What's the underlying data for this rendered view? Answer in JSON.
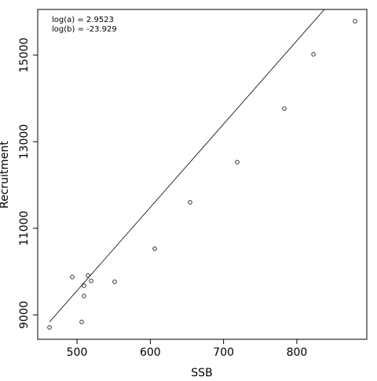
{
  "chart_data": {
    "type": "scatter",
    "xlabel": "SSB",
    "ylabel": "Recruitment",
    "annotations": [
      "log(a) = 2.9523",
      "log(b) = -23.929"
    ],
    "series": [
      {
        "type": "scatter",
        "color": "#000000",
        "x": [
          462.5,
          493.6,
          506.4,
          509.6,
          509.6,
          515,
          519.3,
          551.4,
          606.1,
          654.3,
          718.6,
          782.9,
          822.6,
          879.4
        ],
        "values": [
          8709,
          9873,
          8836,
          9673,
          9436,
          9909,
          9782,
          9764,
          10527,
          11600,
          12527,
          13764,
          15018,
          15782
        ]
      },
      {
        "type": "line",
        "color": "#000000",
        "x": [
          462.5,
          837.5
        ],
        "values": [
          8836,
          16054
        ]
      }
    ],
    "xlim": [
      446.4,
      895.4
    ],
    "xticks": [
      500,
      600,
      700,
      800
    ],
    "ylim": [
      8436,
      16054
    ],
    "yticks": [
      9000,
      11000,
      13000,
      15000
    ]
  }
}
